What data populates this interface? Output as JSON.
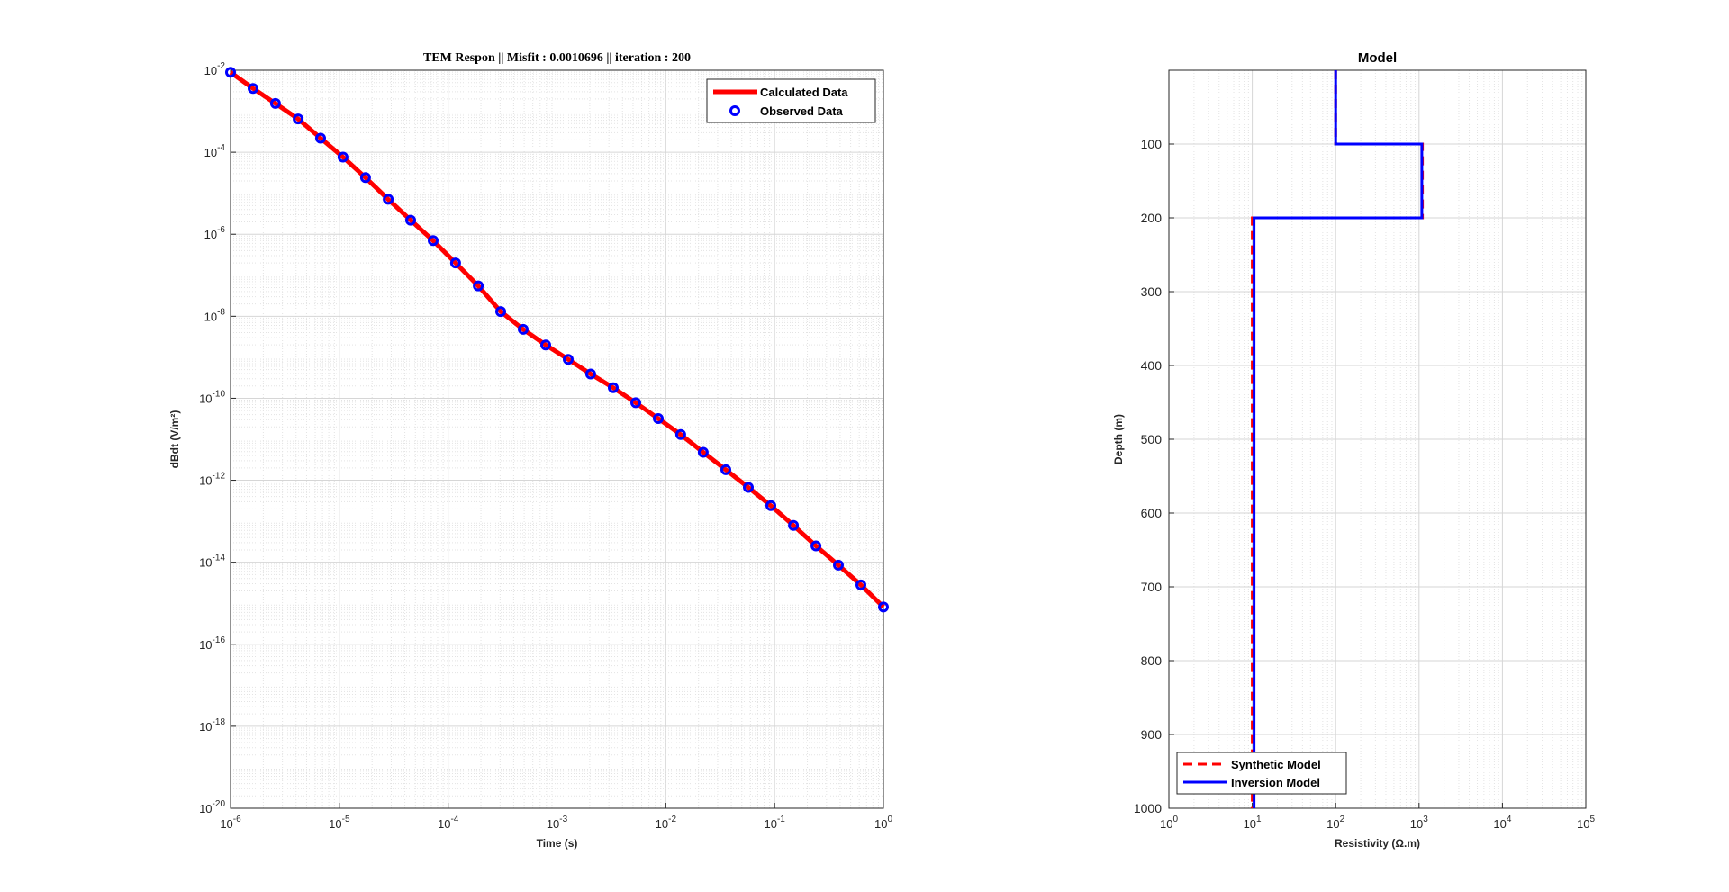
{
  "chart_data": [
    {
      "type": "line",
      "title": "TEM Respon  || Misfit : 0.0010696 || iteration : 200",
      "xlabel": "Time (s)",
      "ylabel": "dBdt (V/m²)",
      "xscale": "log",
      "yscale": "log",
      "xlim": [
        1e-06,
        1
      ],
      "ylim": [
        1e-20,
        0.01
      ],
      "grid": true,
      "legend_position": "top-right",
      "x_tick_labels": [
        "10^-6",
        "10^-5",
        "10^-4",
        "10^-3",
        "10^-2",
        "10^-1",
        "10^0"
      ],
      "y_tick_labels": [
        "10^-20",
        "10^-18",
        "10^-16",
        "10^-14",
        "10^-12",
        "10^-10",
        "10^-8",
        "10^-6",
        "10^-4",
        "10^-2"
      ],
      "series": [
        {
          "name": "Calculated Data",
          "color": "#ff0000",
          "style": "solid",
          "x": [
            1e-06,
            1.61e-06,
            2.59e-06,
            4.18e-06,
            6.72e-06,
            1.08e-05,
            1.74e-05,
            2.81e-05,
            4.52e-05,
            7.28e-05,
            0.000117,
            0.000189,
            0.000304,
            0.000489,
            0.000788,
            0.00127,
            0.00204,
            0.00329,
            0.0053,
            0.00853,
            0.0137,
            0.0221,
            0.0356,
            0.0574,
            0.0924,
            0.149,
            0.24,
            0.386,
            0.621,
            1.0
          ],
          "y": [
            0.0089,
            0.0036,
            0.00155,
            0.00065,
            0.00022,
            7.6e-05,
            2.4e-05,
            7.1e-06,
            2.2e-06,
            7e-07,
            2e-07,
            5.5e-08,
            1.3e-08,
            4.8e-09,
            2e-09,
            8.9e-10,
            3.9e-10,
            1.8e-10,
            7.8e-11,
            3.2e-11,
            1.3e-11,
            4.8e-12,
            1.8e-12,
            6.7e-13,
            2.4e-13,
            7.9e-14,
            2.5e-14,
            8.5e-15,
            2.8e-15,
            8.1e-16
          ]
        },
        {
          "name": "Observed Data",
          "color": "#0000ff",
          "marker": "circle",
          "x": [
            1e-06,
            1.61e-06,
            2.59e-06,
            4.18e-06,
            6.72e-06,
            1.08e-05,
            1.74e-05,
            2.81e-05,
            4.52e-05,
            7.28e-05,
            0.000117,
            0.000189,
            0.000304,
            0.000489,
            0.000788,
            0.00127,
            0.00204,
            0.00329,
            0.0053,
            0.00853,
            0.0137,
            0.0221,
            0.0356,
            0.0574,
            0.0924,
            0.149,
            0.24,
            0.386,
            0.621,
            1.0
          ],
          "y": [
            0.0089,
            0.0036,
            0.00155,
            0.00065,
            0.00022,
            7.6e-05,
            2.4e-05,
            7.1e-06,
            2.2e-06,
            7e-07,
            2e-07,
            5.5e-08,
            1.3e-08,
            4.8e-09,
            2e-09,
            8.9e-10,
            3.9e-10,
            1.8e-10,
            7.8e-11,
            3.2e-11,
            1.3e-11,
            4.8e-12,
            1.8e-12,
            6.7e-13,
            2.4e-13,
            7.9e-14,
            2.5e-14,
            8.5e-15,
            2.8e-15,
            8.1e-16
          ]
        }
      ]
    },
    {
      "type": "line",
      "title": "Model",
      "xlabel": "Resistivity (Ω.m)",
      "ylabel": "Depth (m)",
      "xscale": "log",
      "xlim": [
        1,
        100000
      ],
      "ylim": [
        0,
        1000
      ],
      "y_reversed": true,
      "grid": true,
      "legend_position": "bottom-left",
      "x_tick_labels": [
        "10^0",
        "10^1",
        "10^2",
        "10^3",
        "10^4",
        "10^5"
      ],
      "y_ticks": [
        100,
        200,
        300,
        400,
        500,
        600,
        700,
        800,
        900,
        1000
      ],
      "series": [
        {
          "name": "Synthetic Model",
          "color": "#ff0000",
          "style": "dashed",
          "points": [
            [
              100,
              0
            ],
            [
              100,
              100
            ],
            [
              1100,
              100
            ],
            [
              1100,
              200
            ],
            [
              10,
              200
            ],
            [
              10,
              1000
            ]
          ]
        },
        {
          "name": "Inversion Model",
          "color": "#0000ff",
          "style": "solid",
          "points": [
            [
              100,
              0
            ],
            [
              100,
              100
            ],
            [
              1080,
              100
            ],
            [
              1080,
              200
            ],
            [
              10.5,
              200
            ],
            [
              10.5,
              1000
            ]
          ]
        }
      ]
    }
  ]
}
